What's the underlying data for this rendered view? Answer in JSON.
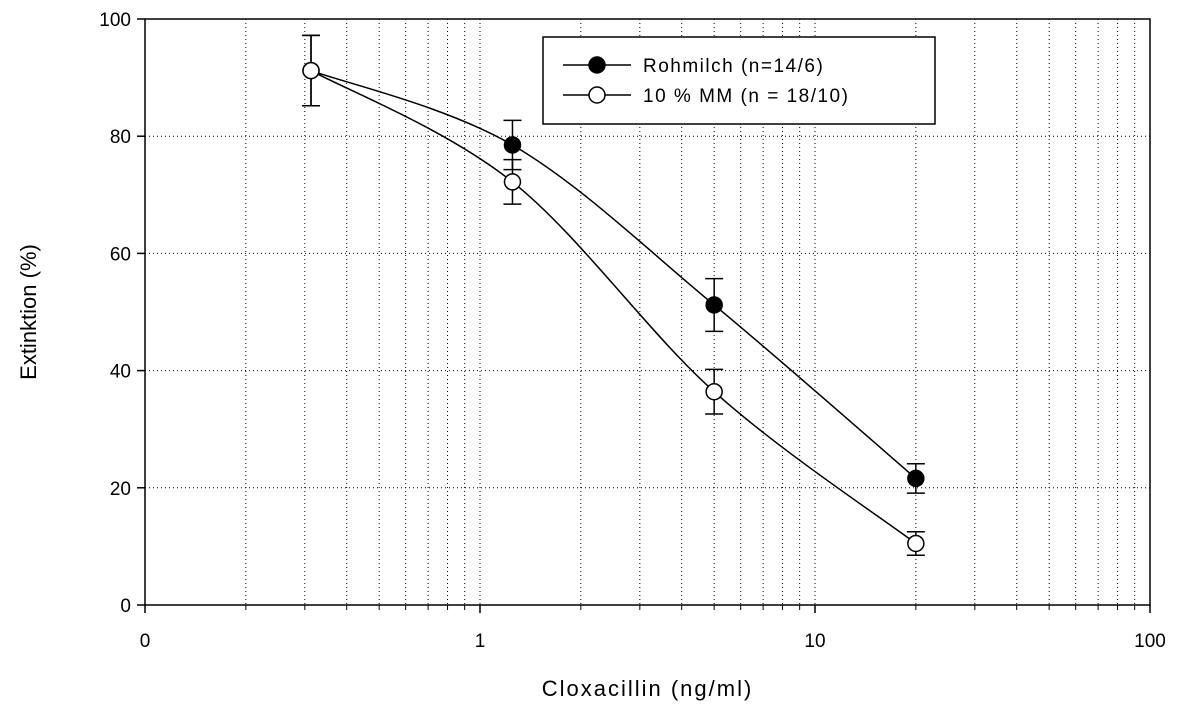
{
  "chart_data": {
    "type": "line",
    "xlabel": "Cloxacillin (ng/ml)",
    "ylabel": "Extinktion (%)",
    "x_scale": "log",
    "xlim": [
      0.1,
      100
    ],
    "ylim": [
      0,
      100
    ],
    "x_ticks": [
      {
        "value": 0.1,
        "label": "0"
      },
      {
        "value": 1,
        "label": "1"
      },
      {
        "value": 10,
        "label": "10"
      },
      {
        "value": 100,
        "label": "100"
      }
    ],
    "y_ticks": [
      0,
      20,
      40,
      60,
      80,
      100
    ],
    "y_tick_labels": [
      "0",
      "20",
      "40",
      "60",
      "80",
      "100"
    ],
    "grid": true,
    "legend_position": "top-right",
    "series": [
      {
        "name": "Rohmilch (n=14/6)",
        "marker": "filled-circle",
        "color": "#000000",
        "x": [
          0.313,
          1.25,
          5,
          20
        ],
        "y": [
          91.2,
          78.5,
          51.2,
          21.6
        ],
        "error": [
          6.0,
          4.2,
          4.5,
          2.5
        ]
      },
      {
        "name": "10 % MM (n = 18/10)",
        "marker": "open-circle",
        "color": "#000000",
        "x": [
          0.313,
          1.25,
          5,
          20
        ],
        "y": [
          91.2,
          72.2,
          36.4,
          10.5
        ],
        "error": [
          6.0,
          3.8,
          3.8,
          2.0
        ]
      }
    ]
  }
}
